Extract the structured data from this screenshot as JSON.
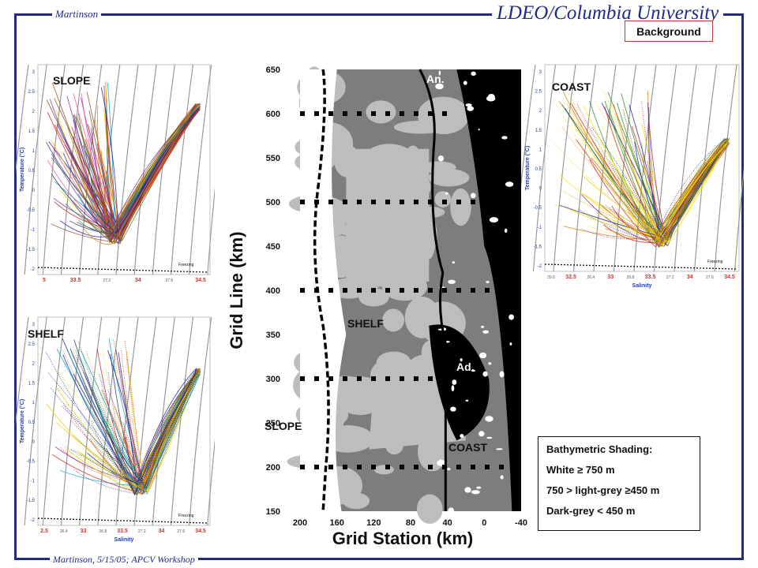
{
  "header": {
    "author": "Martinson",
    "institution": "LDEO/Columbia University",
    "button_label": "Background"
  },
  "footer": {
    "text": "Martinson, 5/15/05; APCV Workshop"
  },
  "panels": {
    "slope": {
      "label": "SLOPE",
      "ylabel": "Temperature (°C)",
      "yticks": [
        "3",
        "2.5",
        "2",
        "1.5",
        "1",
        "0.5",
        "0",
        "-0.5",
        "-1",
        "-1.5",
        "-2"
      ],
      "xticks": [
        "5",
        "33.5",
        "27.2",
        "34",
        "27.6",
        "34.5"
      ],
      "freezing": "Freezing"
    },
    "shelf": {
      "label": "SHELF",
      "ylabel": "Temperature (°C)",
      "xlabel": "Salinity",
      "yticks": [
        "3",
        "2.5",
        "2",
        "1.5",
        "1",
        "0.5",
        "0",
        "-0.5",
        "-1",
        "-1.5",
        "-2"
      ],
      "xticks": [
        "2.5",
        "26.4",
        "33",
        "26.8",
        "33.5",
        "27.2",
        "34",
        "27.6",
        "34.5"
      ],
      "freezing": "Freezing"
    },
    "coast": {
      "label": "COAST",
      "ylabel": "Temperature (°C)",
      "xlabel": "Salinity",
      "yticks": [
        "3",
        "2.5",
        "2",
        "1.5",
        "1",
        "0.5",
        "0",
        "-0.5",
        "-1",
        "-1.5",
        "-2"
      ],
      "xticks": [
        "26.0",
        "32.5",
        "26.4",
        "33",
        "26.8",
        "33.5",
        "27.2",
        "34",
        "27.6",
        "34.5"
      ],
      "freezing": "Freezing"
    }
  },
  "map": {
    "ylabel": "Grid Line (km)",
    "xlabel": "Grid Station (km)",
    "yticks": [
      "650",
      "600",
      "550",
      "500",
      "450",
      "400",
      "350",
      "300",
      "250",
      "200",
      "150"
    ],
    "xticks": [
      "200",
      "160",
      "120",
      "80",
      "40",
      "0",
      "-40"
    ],
    "labels": {
      "an": "An.",
      "ad": "Ad.",
      "shelf": "SHELF",
      "slope": "SLOPE",
      "coast": "COAST"
    }
  },
  "legend": {
    "title": "Bathymetric Shading:",
    "lines": [
      "White ≥ 750 m",
      "750 > light-grey ≥450 m",
      "Dark-grey < 450 m"
    ]
  },
  "colors": {
    "frame": "#1f2a8a",
    "axis_tick_red": "#d0312d",
    "axis_label_blue": "#1f3fb0",
    "light_grey": "#bdbdbd",
    "dark_grey": "#7d7d7d",
    "black": "#000000"
  }
}
